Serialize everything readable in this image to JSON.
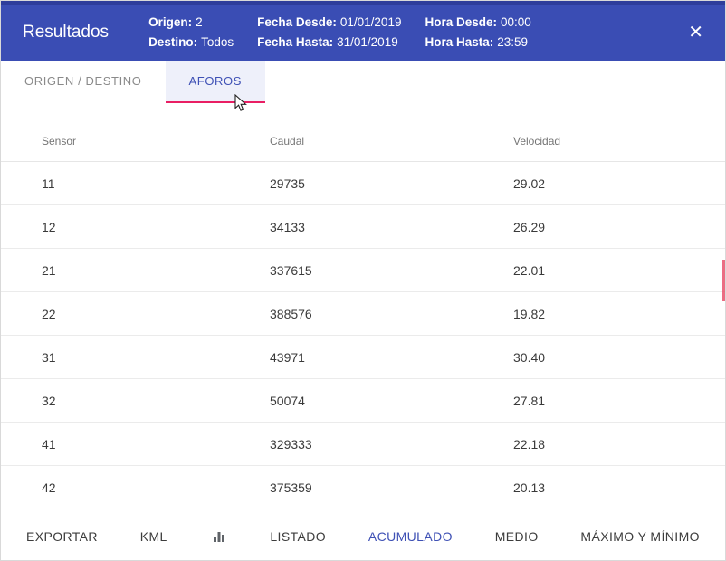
{
  "header": {
    "title": "Resultados",
    "fields": [
      {
        "label": "Origen:",
        "value": "2"
      },
      {
        "label": "Destino:",
        "value": "Todos"
      },
      {
        "label": "Fecha Desde:",
        "value": "01/01/2019"
      },
      {
        "label": "Fecha Hasta:",
        "value": "31/01/2019"
      },
      {
        "label": "Hora Desde:",
        "value": "00:00"
      },
      {
        "label": "Hora Hasta:",
        "value": "23:59"
      }
    ],
    "close_label": "✕"
  },
  "tabs": [
    {
      "label": "ORIGEN / DESTINO",
      "active": false
    },
    {
      "label": "AFOROS",
      "active": true
    }
  ],
  "table": {
    "columns": [
      "Sensor",
      "Caudal",
      "Velocidad"
    ],
    "rows": [
      [
        "11",
        "29735",
        "29.02"
      ],
      [
        "12",
        "34133",
        "26.29"
      ],
      [
        "21",
        "337615",
        "22.01"
      ],
      [
        "22",
        "388576",
        "19.82"
      ],
      [
        "31",
        "43971",
        "30.40"
      ],
      [
        "32",
        "50074",
        "27.81"
      ],
      [
        "41",
        "329333",
        "22.18"
      ],
      [
        "42",
        "375359",
        "20.13"
      ]
    ]
  },
  "footer": {
    "actions": [
      "EXPORTAR",
      "KML",
      "LISTADO",
      "ACUMULADO",
      "MEDIO",
      "MÁXIMO Y MÍNIMO"
    ],
    "active_action": "ACUMULADO",
    "icons": [
      "bar-chart-icon"
    ]
  },
  "colors": {
    "header_bg": "#3a4db4",
    "accent_pink": "#e91e63",
    "active_tab_text": "#3f51b5",
    "active_action_text": "#3f51b5"
  }
}
